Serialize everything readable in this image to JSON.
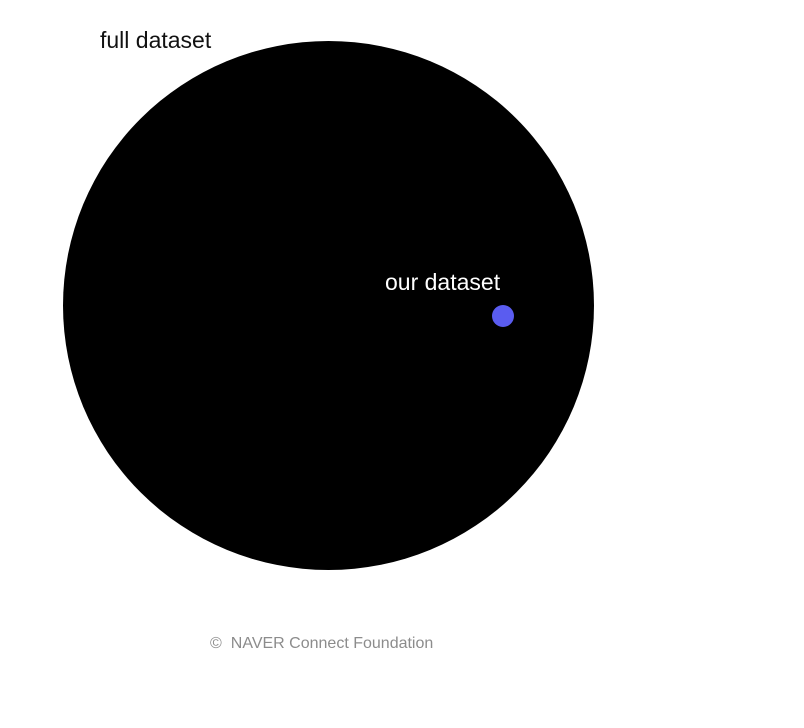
{
  "diagram": {
    "full_dataset_label": "full dataset",
    "our_dataset_label": "our dataset",
    "colors": {
      "full_dataset_circle": "#000000",
      "our_dataset_dot": "#5a5cf0"
    }
  },
  "footer": {
    "copyright_symbol": "©",
    "copyright_text": "NAVER Connect Foundation"
  }
}
